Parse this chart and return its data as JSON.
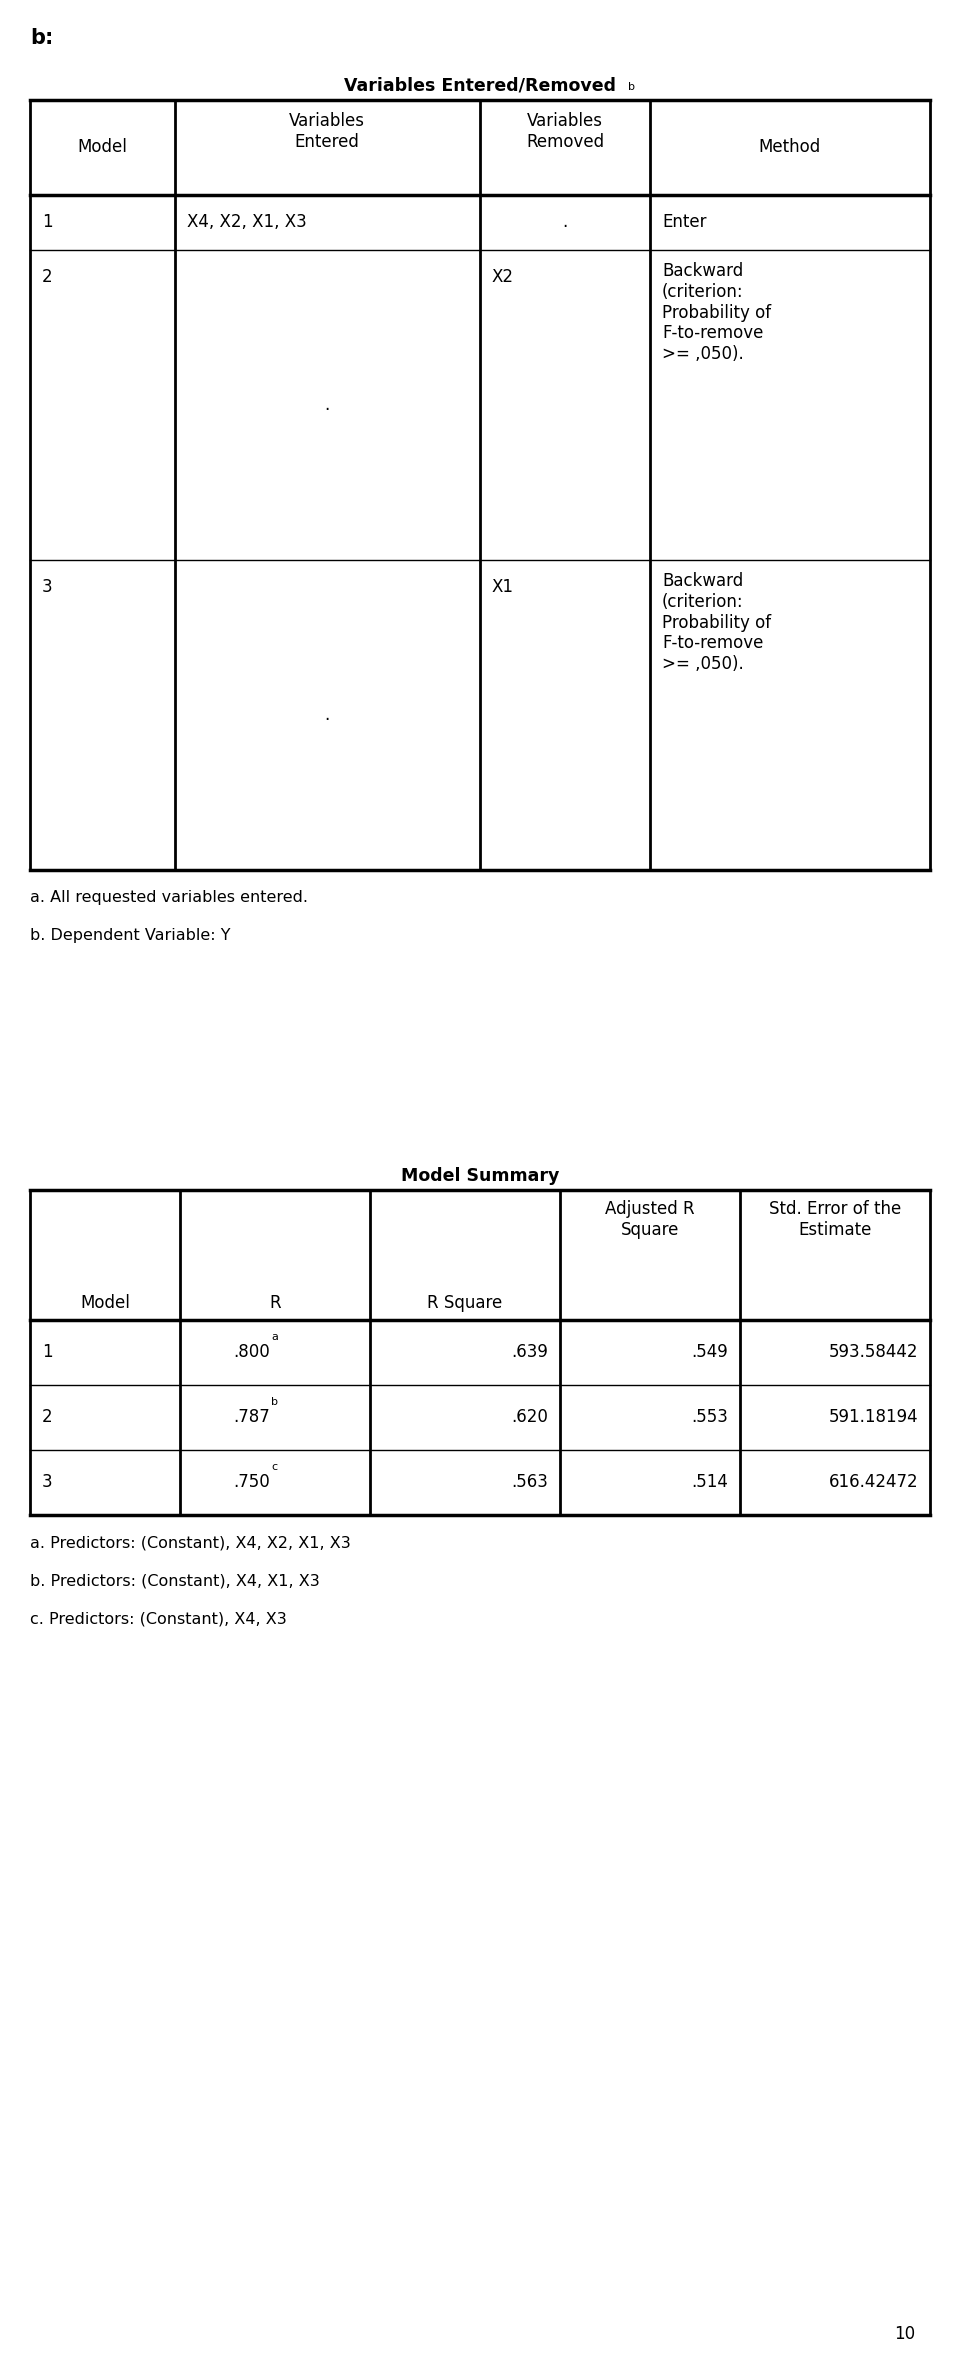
{
  "page_label": "10",
  "section_label": "b:",
  "table1_title": "Variables Entered/Removed",
  "table1_title_superscript": "b",
  "table1_footnotes": [
    "a. All requested variables entered.",
    "b. Dependent Variable: Y"
  ],
  "table2_title": "Model Summary",
  "table2_footnotes": [
    "a. Predictors: (Constant), X4, X2, X1, X3",
    "b. Predictors: (Constant), X4, X1, X3",
    "c. Predictors: (Constant), X4, X3"
  ],
  "r_vals": [
    ".800",
    ".787",
    ".750"
  ],
  "r_sups": [
    "a",
    "b",
    "c"
  ],
  "rsq_vals": [
    ".639",
    ".620",
    ".563"
  ],
  "adj_rsq_vals": [
    ".549",
    ".553",
    ".514"
  ],
  "std_err_vals": [
    "593.58442",
    "591.18194",
    "616.42472"
  ],
  "model_nums": [
    "1",
    "2",
    "3"
  ],
  "background_color": "#ffffff",
  "text_color": "#000000"
}
